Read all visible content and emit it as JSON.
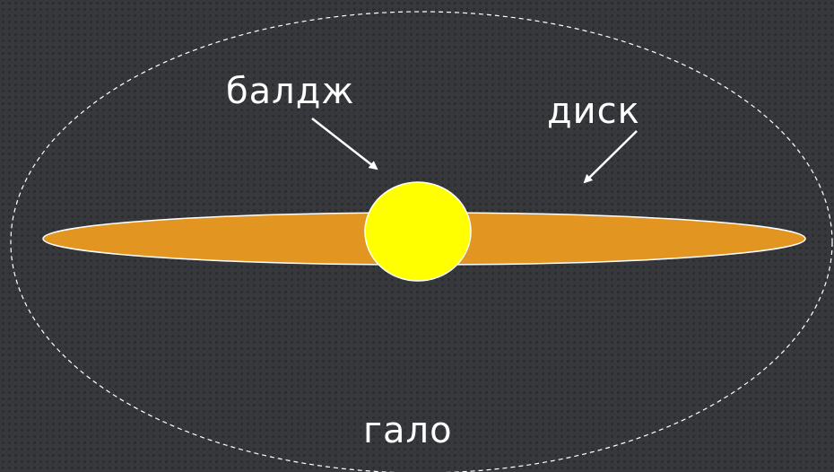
{
  "labels": {
    "bulge": "балдж",
    "disk": "диск",
    "halo": "гало"
  },
  "colors": {
    "background": "#36383c",
    "disk_fill": "#e29521",
    "bulge_fill": "#ffff00",
    "outline": "#ffffff",
    "halo_outline": "#ffffff",
    "text": "#ffffff"
  }
}
